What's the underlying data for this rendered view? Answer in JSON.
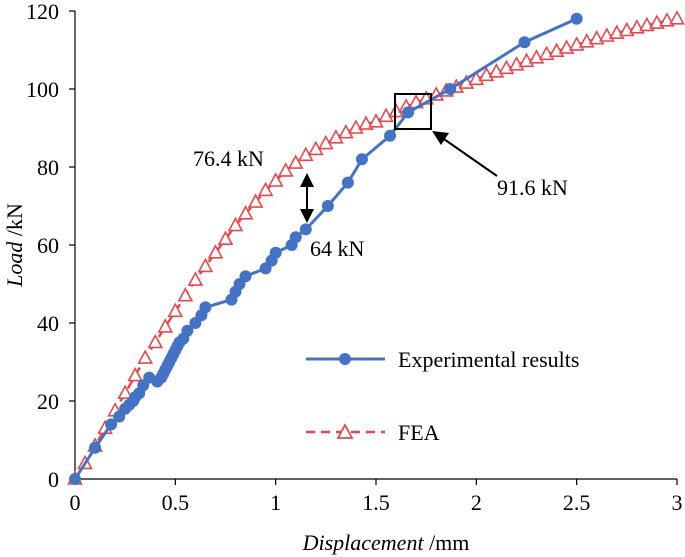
{
  "chart_data": {
    "type": "line",
    "title": "",
    "xlabel_italic": "Displacement",
    "xlabel_unit": " /mm",
    "ylabel_italic": "Load",
    "ylabel_unit": " /kN",
    "xlim": [
      0,
      3
    ],
    "ylim": [
      0,
      120
    ],
    "xticks": [
      0,
      0.5,
      1,
      1.5,
      2,
      2.5,
      3
    ],
    "xtick_labels": [
      "0",
      "0.5",
      "1",
      "1.5",
      "2",
      "2.5",
      "3"
    ],
    "yticks": [
      0,
      20,
      40,
      60,
      80,
      100,
      120
    ],
    "ytick_labels": [
      "0",
      "20",
      "40",
      "60",
      "80",
      "100",
      "120"
    ],
    "grid": false,
    "legend_position": "bottom-right",
    "series": [
      {
        "name": "Experimental results",
        "color": "#4472C4",
        "marker": "circle",
        "line_style": "solid",
        "x": [
          0,
          0.1,
          0.18,
          0.22,
          0.25,
          0.27,
          0.29,
          0.3,
          0.32,
          0.34,
          0.37,
          0.41,
          0.43,
          0.44,
          0.45,
          0.46,
          0.47,
          0.48,
          0.49,
          0.5,
          0.51,
          0.52,
          0.54,
          0.56,
          0.6,
          0.63,
          0.65,
          0.78,
          0.8,
          0.82,
          0.85,
          0.95,
          0.98,
          1.0,
          1.08,
          1.1,
          1.15,
          1.26,
          1.36,
          1.43,
          1.57,
          1.66,
          1.87,
          2.24,
          2.5
        ],
        "y": [
          0,
          8,
          14,
          16,
          18,
          19,
          20,
          21,
          22,
          24,
          26,
          25,
          26,
          27,
          28,
          29,
          30,
          31,
          32,
          33,
          34,
          35,
          36,
          38,
          40,
          42,
          44,
          46,
          48,
          50,
          52,
          54,
          56,
          58,
          60,
          62,
          64,
          70,
          76,
          82,
          88,
          94,
          100,
          112,
          118
        ]
      },
      {
        "name": "FEA",
        "color": "#E8474C",
        "marker": "triangle-open",
        "line_style": "dashed",
        "x": [
          0,
          0.05,
          0.1,
          0.15,
          0.2,
          0.25,
          0.3,
          0.35,
          0.4,
          0.45,
          0.5,
          0.55,
          0.6,
          0.65,
          0.7,
          0.75,
          0.8,
          0.85,
          0.9,
          0.95,
          1.0,
          1.05,
          1.1,
          1.15,
          1.2,
          1.25,
          1.3,
          1.35,
          1.4,
          1.45,
          1.5,
          1.55,
          1.6,
          1.65,
          1.7,
          1.75,
          1.8,
          1.85,
          1.9,
          1.95,
          2.0,
          2.05,
          2.1,
          2.15,
          2.2,
          2.25,
          2.3,
          2.35,
          2.4,
          2.45,
          2.5,
          2.55,
          2.6,
          2.65,
          2.7,
          2.75,
          2.8,
          2.85,
          2.9,
          2.95,
          3.0
        ],
        "y": [
          0,
          4,
          8.5,
          13,
          17.5,
          22,
          26.5,
          31,
          35,
          39,
          43,
          47,
          51,
          54.5,
          58,
          61.5,
          65,
          68,
          71,
          74,
          76.4,
          79,
          81,
          83,
          84.5,
          86,
          87.5,
          88.8,
          90,
          91,
          91.6,
          93,
          94.2,
          95.4,
          96.5,
          97.5,
          98.5,
          99.5,
          100.5,
          101.5,
          102.5,
          103.5,
          104.4,
          105.3,
          106.2,
          107.1,
          108,
          108.9,
          109.7,
          110.5,
          111.3,
          112.1,
          112.9,
          113.6,
          114.3,
          115,
          115.7,
          116.3,
          116.9,
          117.5,
          118
        ]
      }
    ],
    "annotations": [
      {
        "text": "76.4 kN"
      },
      {
        "text": "64 kN"
      },
      {
        "text": "91.6 kN"
      }
    ]
  }
}
